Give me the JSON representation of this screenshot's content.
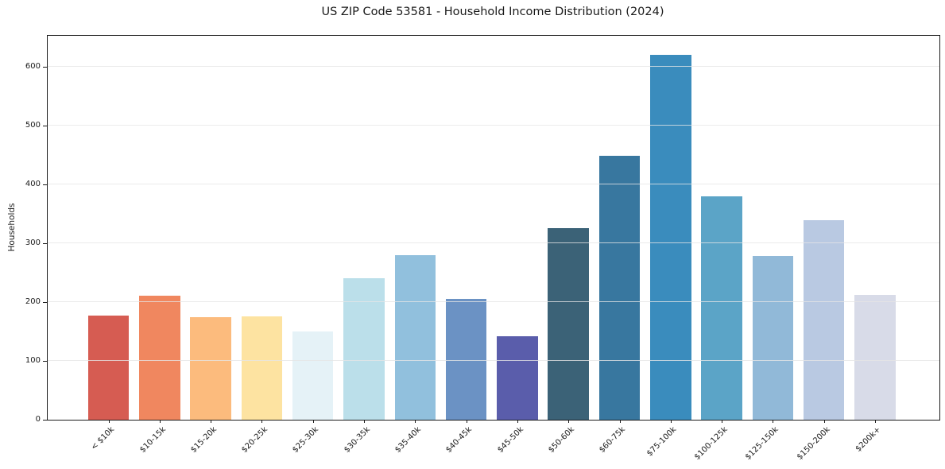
{
  "figure": {
    "title": "US ZIP Code 53581 - Household Income Distribution (2024)"
  },
  "chart_data": {
    "type": "bar",
    "title": "US ZIP Code 53581 - Household Income Distribution (2024)",
    "xlabel": "",
    "ylabel": "Households",
    "categories": [
      "< $10k",
      "$10-15k",
      "$15-20k",
      "$20-25k",
      "$25-30k",
      "$30-35k",
      "$35-40k",
      "$40-45k",
      "$45-50k",
      "$50-60k",
      "$60-75k",
      "$75-100k",
      "$100-125k",
      "$125-150k",
      "$150-200k",
      "$200k+"
    ],
    "values": [
      177,
      210,
      174,
      176,
      150,
      240,
      279,
      205,
      142,
      325,
      448,
      620,
      380,
      278,
      339,
      212
    ],
    "bar_colors": [
      "#d65c52",
      "#f0875f",
      "#fcbb7d",
      "#fde3a1",
      "#e5f2f7",
      "#bbdfea",
      "#91c0dd",
      "#6b92c4",
      "#5a5dab",
      "#3b6277",
      "#38779f",
      "#3a8cbd",
      "#5ba4c7",
      "#91b9d8",
      "#b9c9e2",
      "#d8dbe8"
    ],
    "ylim": [
      0,
      652
    ],
    "yticks": [
      0,
      100,
      200,
      300,
      400,
      500,
      600
    ],
    "x_tick_rotation_deg": 45,
    "grid": "horizontal gridlines at y ticks, light gray, drawn above bars",
    "legend": "none",
    "background_color": "#ffffff",
    "spine_color": "#1a1a1a"
  }
}
